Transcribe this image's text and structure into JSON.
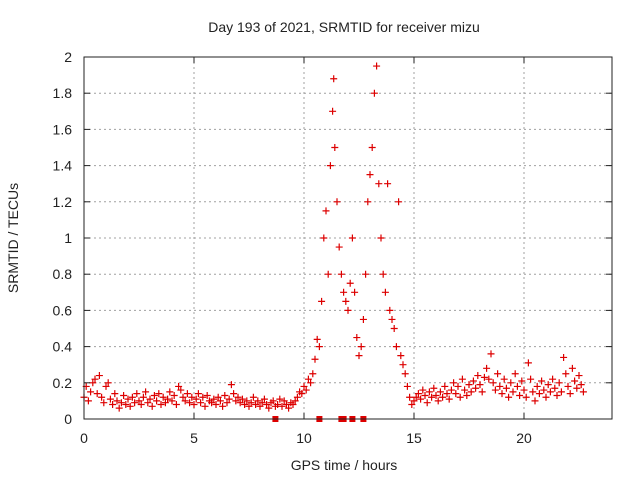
{
  "chart_data": {
    "type": "scatter",
    "title": "Day 193 of 2021, SRMTID for receiver mizu",
    "xlabel": "GPS time / hours",
    "ylabel": "SRMTID / TECUs",
    "xlim": [
      0,
      24
    ],
    "ylim": [
      0,
      2
    ],
    "xticks": [
      0,
      5,
      10,
      15,
      20
    ],
    "xtick_labels": [
      "0",
      "5",
      "10",
      "15",
      "20"
    ],
    "yticks": [
      0,
      0.2,
      0.4,
      0.6,
      0.8,
      1,
      1.2,
      1.4,
      1.6,
      1.8,
      2
    ],
    "ytick_labels": [
      "0",
      "0.2",
      "0.4",
      "0.6",
      "0.8",
      "1",
      "1.2",
      "1.4",
      "1.6",
      "1.8",
      "2"
    ],
    "grid": true,
    "marker": "plus",
    "color": "#dd0000",
    "series": [
      {
        "name": "SRMTID",
        "points": [
          [
            0.0,
            0.12
          ],
          [
            0.1,
            0.18
          ],
          [
            0.2,
            0.1
          ],
          [
            0.3,
            0.15
          ],
          [
            0.4,
            0.2
          ],
          [
            0.5,
            0.22
          ],
          [
            0.6,
            0.14
          ],
          [
            0.7,
            0.24
          ],
          [
            0.8,
            0.12
          ],
          [
            0.9,
            0.09
          ],
          [
            1.0,
            0.18
          ],
          [
            1.1,
            0.2
          ],
          [
            1.2,
            0.11
          ],
          [
            1.3,
            0.08
          ],
          [
            1.4,
            0.14
          ],
          [
            1.5,
            0.1
          ],
          [
            1.6,
            0.06
          ],
          [
            1.7,
            0.09
          ],
          [
            1.8,
            0.13
          ],
          [
            1.9,
            0.08
          ],
          [
            2.0,
            0.11
          ],
          [
            2.1,
            0.07
          ],
          [
            2.2,
            0.12
          ],
          [
            2.3,
            0.09
          ],
          [
            2.4,
            0.14
          ],
          [
            2.5,
            0.1
          ],
          [
            2.6,
            0.08
          ],
          [
            2.7,
            0.12
          ],
          [
            2.8,
            0.15
          ],
          [
            2.9,
            0.09
          ],
          [
            3.0,
            0.11
          ],
          [
            3.1,
            0.07
          ],
          [
            3.2,
            0.13
          ],
          [
            3.3,
            0.1
          ],
          [
            3.4,
            0.14
          ],
          [
            3.5,
            0.08
          ],
          [
            3.6,
            0.12
          ],
          [
            3.7,
            0.09
          ],
          [
            3.8,
            0.11
          ],
          [
            3.9,
            0.15
          ],
          [
            4.0,
            0.1
          ],
          [
            4.1,
            0.13
          ],
          [
            4.2,
            0.08
          ],
          [
            4.3,
            0.18
          ],
          [
            4.4,
            0.16
          ],
          [
            4.5,
            0.12
          ],
          [
            4.6,
            0.1
          ],
          [
            4.7,
            0.14
          ],
          [
            4.8,
            0.09
          ],
          [
            4.9,
            0.12
          ],
          [
            5.0,
            0.08
          ],
          [
            5.1,
            0.11
          ],
          [
            5.2,
            0.14
          ],
          [
            5.3,
            0.09
          ],
          [
            5.4,
            0.12
          ],
          [
            5.5,
            0.07
          ],
          [
            5.6,
            0.13
          ],
          [
            5.7,
            0.1
          ],
          [
            5.8,
            0.09
          ],
          [
            5.9,
            0.11
          ],
          [
            6.0,
            0.08
          ],
          [
            6.1,
            0.12
          ],
          [
            6.2,
            0.1
          ],
          [
            6.3,
            0.07
          ],
          [
            6.4,
            0.13
          ],
          [
            6.5,
            0.09
          ],
          [
            6.6,
            0.11
          ],
          [
            6.7,
            0.19
          ],
          [
            6.8,
            0.14
          ],
          [
            6.9,
            0.1
          ],
          [
            7.0,
            0.12
          ],
          [
            7.1,
            0.09
          ],
          [
            7.2,
            0.11
          ],
          [
            7.3,
            0.08
          ],
          [
            7.4,
            0.1
          ],
          [
            7.5,
            0.07
          ],
          [
            7.6,
            0.09
          ],
          [
            7.7,
            0.12
          ],
          [
            7.8,
            0.08
          ],
          [
            7.9,
            0.1
          ],
          [
            8.0,
            0.07
          ],
          [
            8.1,
            0.09
          ],
          [
            8.2,
            0.11
          ],
          [
            8.3,
            0.08
          ],
          [
            8.4,
            0.06
          ],
          [
            8.5,
            0.09
          ],
          [
            8.6,
            0.1
          ],
          [
            8.7,
            0.07
          ],
          [
            8.8,
            0.08
          ],
          [
            8.9,
            0.11
          ],
          [
            9.0,
            0.07
          ],
          [
            9.1,
            0.1
          ],
          [
            9.2,
            0.08
          ],
          [
            9.3,
            0.06
          ],
          [
            9.4,
            0.09
          ],
          [
            9.5,
            0.08
          ],
          [
            9.6,
            0.1
          ],
          [
            9.7,
            0.12
          ],
          [
            9.8,
            0.15
          ],
          [
            9.9,
            0.14
          ],
          [
            10.0,
            0.18
          ],
          [
            10.1,
            0.16
          ],
          [
            10.2,
            0.22
          ],
          [
            10.3,
            0.2
          ],
          [
            10.4,
            0.25
          ],
          [
            10.5,
            0.33
          ],
          [
            10.6,
            0.44
          ],
          [
            10.7,
            0.4
          ],
          [
            10.8,
            0.65
          ],
          [
            10.9,
            1.0
          ],
          [
            11.0,
            1.15
          ],
          [
            11.1,
            0.8
          ],
          [
            11.2,
            1.4
          ],
          [
            11.3,
            1.7
          ],
          [
            11.35,
            1.88
          ],
          [
            11.4,
            1.5
          ],
          [
            11.5,
            1.2
          ],
          [
            11.6,
            0.95
          ],
          [
            11.7,
            0.8
          ],
          [
            11.8,
            0.7
          ],
          [
            11.9,
            0.65
          ],
          [
            12.0,
            0.6
          ],
          [
            12.1,
            0.75
          ],
          [
            12.2,
            1.0
          ],
          [
            12.3,
            0.7
          ],
          [
            12.4,
            0.45
          ],
          [
            12.5,
            0.35
          ],
          [
            12.6,
            0.4
          ],
          [
            12.7,
            0.55
          ],
          [
            12.8,
            0.8
          ],
          [
            12.9,
            1.2
          ],
          [
            13.0,
            1.35
          ],
          [
            13.1,
            1.5
          ],
          [
            13.2,
            1.8
          ],
          [
            13.3,
            1.95
          ],
          [
            13.4,
            1.3
          ],
          [
            13.5,
            1.0
          ],
          [
            13.6,
            0.8
          ],
          [
            13.7,
            0.7
          ],
          [
            13.8,
            1.3
          ],
          [
            13.9,
            0.6
          ],
          [
            14.0,
            0.55
          ],
          [
            14.1,
            0.5
          ],
          [
            14.2,
            0.4
          ],
          [
            14.3,
            1.2
          ],
          [
            14.4,
            0.35
          ],
          [
            14.5,
            0.3
          ],
          [
            14.6,
            0.25
          ],
          [
            14.7,
            0.18
          ],
          [
            14.8,
            0.12
          ],
          [
            14.9,
            0.08
          ],
          [
            15.0,
            0.1
          ],
          [
            15.1,
            0.12
          ],
          [
            15.2,
            0.14
          ],
          [
            15.3,
            0.11
          ],
          [
            15.4,
            0.16
          ],
          [
            15.5,
            0.13
          ],
          [
            15.6,
            0.09
          ],
          [
            15.7,
            0.15
          ],
          [
            15.8,
            0.12
          ],
          [
            15.9,
            0.17
          ],
          [
            16.0,
            0.13
          ],
          [
            16.1,
            0.1
          ],
          [
            16.2,
            0.15
          ],
          [
            16.3,
            0.12
          ],
          [
            16.4,
            0.18
          ],
          [
            16.5,
            0.14
          ],
          [
            16.6,
            0.11
          ],
          [
            16.7,
            0.16
          ],
          [
            16.8,
            0.2
          ],
          [
            16.9,
            0.14
          ],
          [
            17.0,
            0.18
          ],
          [
            17.1,
            0.12
          ],
          [
            17.2,
            0.22
          ],
          [
            17.3,
            0.16
          ],
          [
            17.4,
            0.13
          ],
          [
            17.5,
            0.19
          ],
          [
            17.6,
            0.15
          ],
          [
            17.7,
            0.21
          ],
          [
            17.8,
            0.17
          ],
          [
            17.9,
            0.24
          ],
          [
            18.0,
            0.19
          ],
          [
            18.1,
            0.15
          ],
          [
            18.2,
            0.23
          ],
          [
            18.3,
            0.28
          ],
          [
            18.4,
            0.22
          ],
          [
            18.5,
            0.36
          ],
          [
            18.6,
            0.2
          ],
          [
            18.7,
            0.16
          ],
          [
            18.8,
            0.25
          ],
          [
            18.9,
            0.18
          ],
          [
            19.0,
            0.14
          ],
          [
            19.1,
            0.22
          ],
          [
            19.2,
            0.17
          ],
          [
            19.3,
            0.12
          ],
          [
            19.4,
            0.2
          ],
          [
            19.5,
            0.15
          ],
          [
            19.6,
            0.25
          ],
          [
            19.7,
            0.18
          ],
          [
            19.8,
            0.13
          ],
          [
            19.9,
            0.21
          ],
          [
            20.0,
            0.16
          ],
          [
            20.1,
            0.12
          ],
          [
            20.2,
            0.31
          ],
          [
            20.3,
            0.22
          ],
          [
            20.4,
            0.15
          ],
          [
            20.5,
            0.1
          ],
          [
            20.6,
            0.18
          ],
          [
            20.7,
            0.14
          ],
          [
            20.8,
            0.21
          ],
          [
            20.9,
            0.16
          ],
          [
            21.0,
            0.12
          ],
          [
            21.1,
            0.19
          ],
          [
            21.2,
            0.15
          ],
          [
            21.3,
            0.22
          ],
          [
            21.4,
            0.17
          ],
          [
            21.5,
            0.13
          ],
          [
            21.6,
            0.2
          ],
          [
            21.7,
            0.15
          ],
          [
            21.8,
            0.34
          ],
          [
            21.9,
            0.25
          ],
          [
            22.0,
            0.18
          ],
          [
            22.1,
            0.14
          ],
          [
            22.2,
            0.28
          ],
          [
            22.3,
            0.21
          ],
          [
            22.4,
            0.17
          ],
          [
            22.5,
            0.24
          ],
          [
            22.6,
            0.19
          ],
          [
            22.7,
            0.15
          ]
        ]
      }
    ],
    "zero_markers": [
      8.7,
      10.7,
      11.7,
      11.8,
      12.2,
      12.7
    ]
  }
}
